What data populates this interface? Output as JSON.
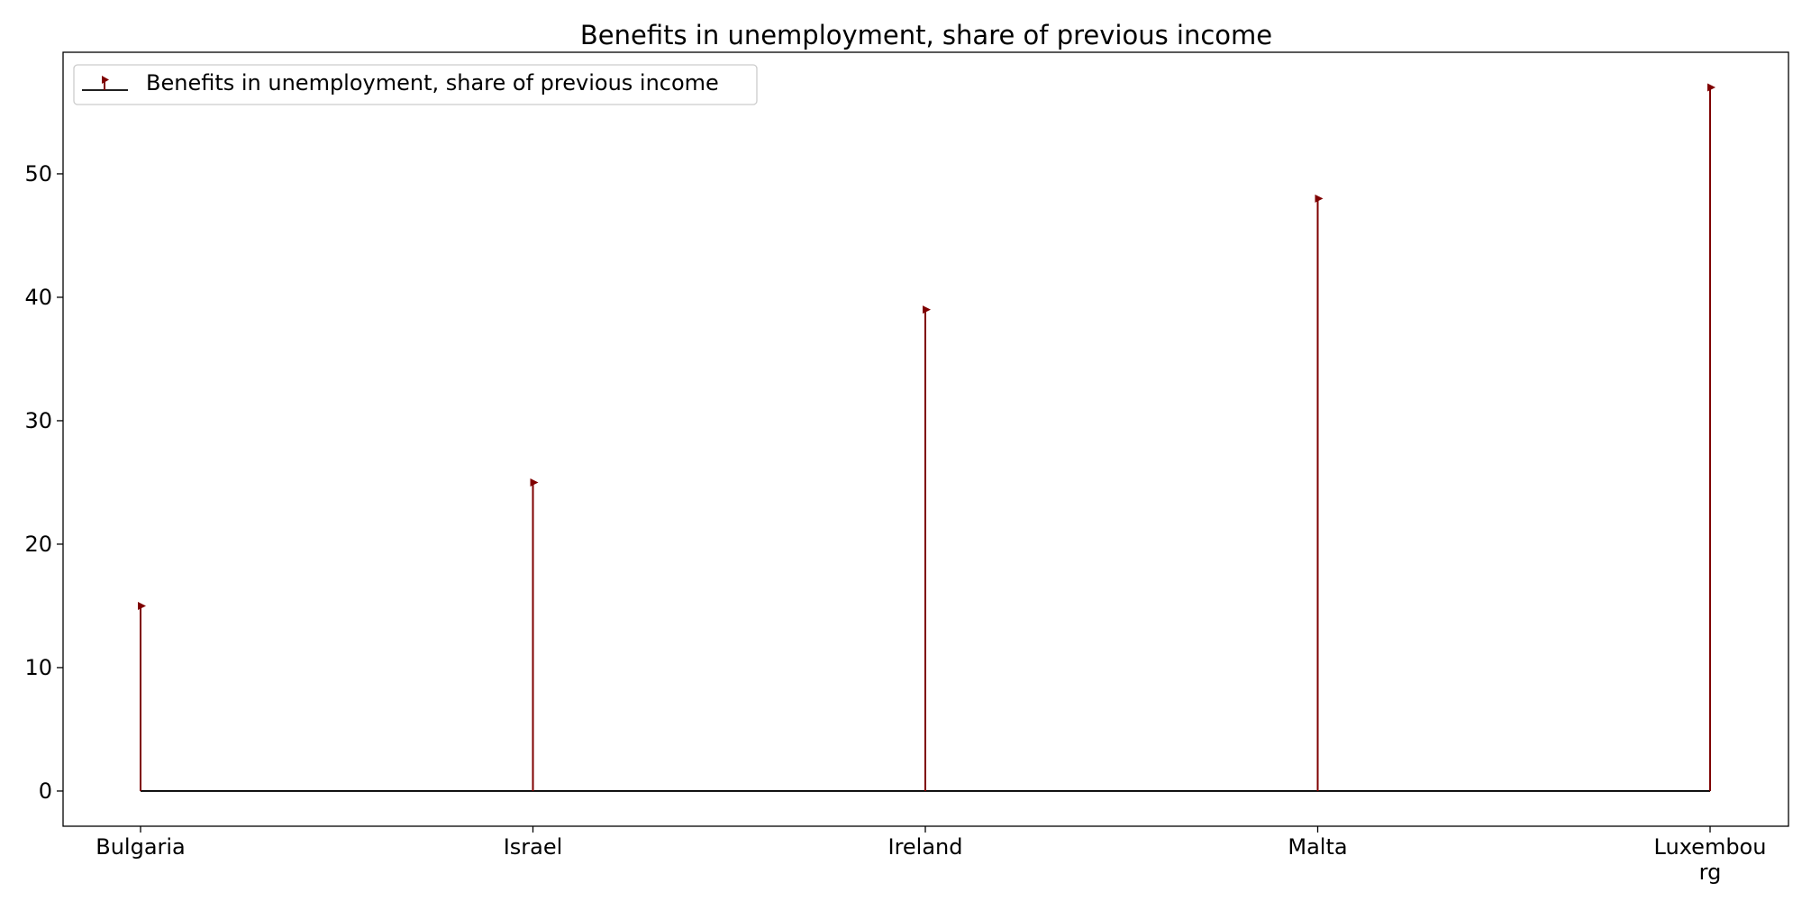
{
  "chart_data": {
    "type": "stem",
    "title": "Benefits in unemployment, share of previous income",
    "xlabel": "",
    "ylabel": "",
    "categories": [
      "Bulgaria",
      "Israel",
      "Ireland",
      "Malta",
      "Luxembourg"
    ],
    "category_display": [
      [
        "Bulgaria"
      ],
      [
        "Israel"
      ],
      [
        "Ireland"
      ],
      [
        "Malta"
      ],
      [
        "Luxembou",
        "rg"
      ]
    ],
    "series": [
      {
        "name": "Benefits in unemployment, share of previous income",
        "values": [
          15,
          25,
          39,
          48,
          57
        ]
      }
    ],
    "ylim": [
      -2.85,
      59.85
    ],
    "yticks": [
      0,
      10,
      20,
      30,
      40,
      50
    ],
    "legend_position": "top-left",
    "grid": false,
    "colors": {
      "stem": "#7f0000",
      "baseline": "#000000",
      "frame": "#000000"
    },
    "marker": "triangle-right"
  }
}
